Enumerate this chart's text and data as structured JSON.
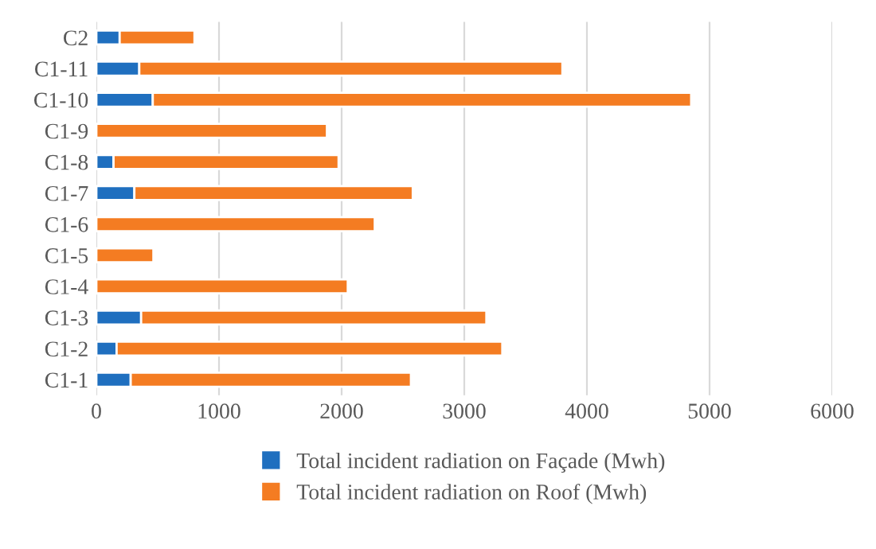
{
  "chart_data": {
    "type": "bar",
    "orientation": "horizontal",
    "stacked": true,
    "categories": [
      "C2",
      "C1-11",
      "C1-10",
      "C1-9",
      "C1-8",
      "C1-7",
      "C1-6",
      "C1-5",
      "C1-4",
      "C1-3",
      "C1-2",
      "C1-1"
    ],
    "series": [
      {
        "name": "Total incident radiation on Façade (Mwh)",
        "color": "#1f6fbf",
        "values": [
          190,
          350,
          460,
          0,
          140,
          310,
          0,
          0,
          0,
          365,
          165,
          280
        ]
      },
      {
        "name": "Total incident radiation on Roof (Mwh)",
        "color": "#f47c22",
        "values": [
          610,
          3450,
          4390,
          1880,
          1835,
          2270,
          2270,
          465,
          2050,
          2815,
          3145,
          2285
        ]
      }
    ],
    "xlim": [
      0,
      6000
    ],
    "xticks": [
      0,
      1000,
      2000,
      3000,
      4000,
      5000,
      6000
    ],
    "grid": "x",
    "legend": "bottom"
  }
}
